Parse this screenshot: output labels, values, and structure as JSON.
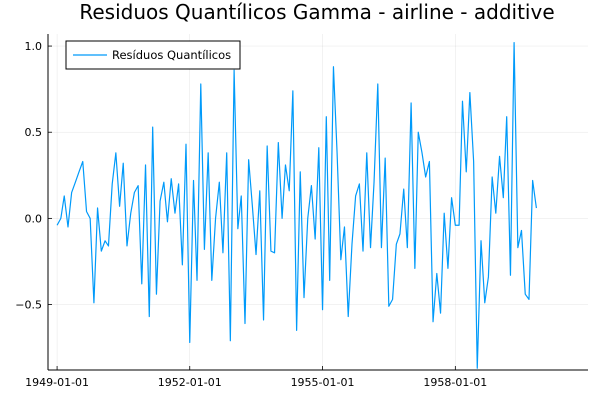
{
  "chart_data": {
    "type": "line",
    "title": "Residuos Quantílicos Gamma - airline - additive",
    "xlabel": "",
    "ylabel": "",
    "x_start": "1949-01-01",
    "x_frequency": "monthly",
    "x_ticks": [
      "1949-01-01",
      "1952-01-01",
      "1955-01-01",
      "1958-01-01"
    ],
    "y_ticks": [
      -0.5,
      0.0,
      0.5,
      1.0
    ],
    "y_tick_labels": [
      "−0.5",
      "0.0",
      "0.5",
      "1.0"
    ],
    "xlim": [
      "1948-10-18",
      "1960-12-31"
    ],
    "ylim": [
      -0.88,
      1.07
    ],
    "grid": true,
    "legend_position": "top-left",
    "series": [
      {
        "name": "Resíduos Quantílicos",
        "color": "#009AFA",
        "values": [
          -0.04,
          0.0,
          0.13,
          -0.05,
          0.15,
          0.21,
          0.27,
          0.33,
          0.04,
          0.0,
          -0.49,
          0.06,
          -0.19,
          -0.13,
          -0.16,
          0.2,
          0.38,
          0.07,
          0.32,
          -0.16,
          0.03,
          0.15,
          0.19,
          -0.38,
          0.31,
          -0.57,
          0.53,
          -0.44,
          0.1,
          0.21,
          -0.02,
          0.23,
          0.03,
          0.2,
          -0.27,
          0.43,
          -0.72,
          0.22,
          -0.36,
          0.78,
          -0.18,
          0.38,
          -0.36,
          0.0,
          0.21,
          -0.2,
          0.38,
          -0.71,
          0.86,
          -0.06,
          0.13,
          -0.61,
          0.34,
          0.07,
          -0.21,
          0.16,
          -0.59,
          0.42,
          -0.19,
          -0.2,
          0.44,
          0.0,
          0.31,
          0.16,
          0.74,
          -0.65,
          0.27,
          -0.46,
          0.0,
          0.19,
          -0.12,
          0.41,
          -0.53,
          0.59,
          -0.36,
          0.88,
          0.38,
          -0.24,
          -0.05,
          -0.57,
          -0.15,
          0.13,
          0.2,
          -0.19,
          0.38,
          -0.17,
          0.21,
          0.78,
          -0.17,
          0.35,
          -0.51,
          -0.47,
          -0.15,
          -0.09,
          0.17,
          -0.17,
          0.67,
          -0.29,
          0.5,
          0.38,
          0.24,
          0.33,
          -0.6,
          -0.32,
          -0.55,
          0.03,
          -0.29,
          0.12,
          -0.04,
          -0.04,
          0.68,
          0.27,
          0.73,
          0.33,
          -0.87,
          -0.13,
          -0.49,
          -0.34,
          0.24,
          0.03,
          0.36,
          0.12,
          0.59,
          -0.33,
          1.02,
          -0.17,
          -0.07,
          -0.44,
          -0.47,
          0.22,
          0.06
        ]
      }
    ]
  }
}
